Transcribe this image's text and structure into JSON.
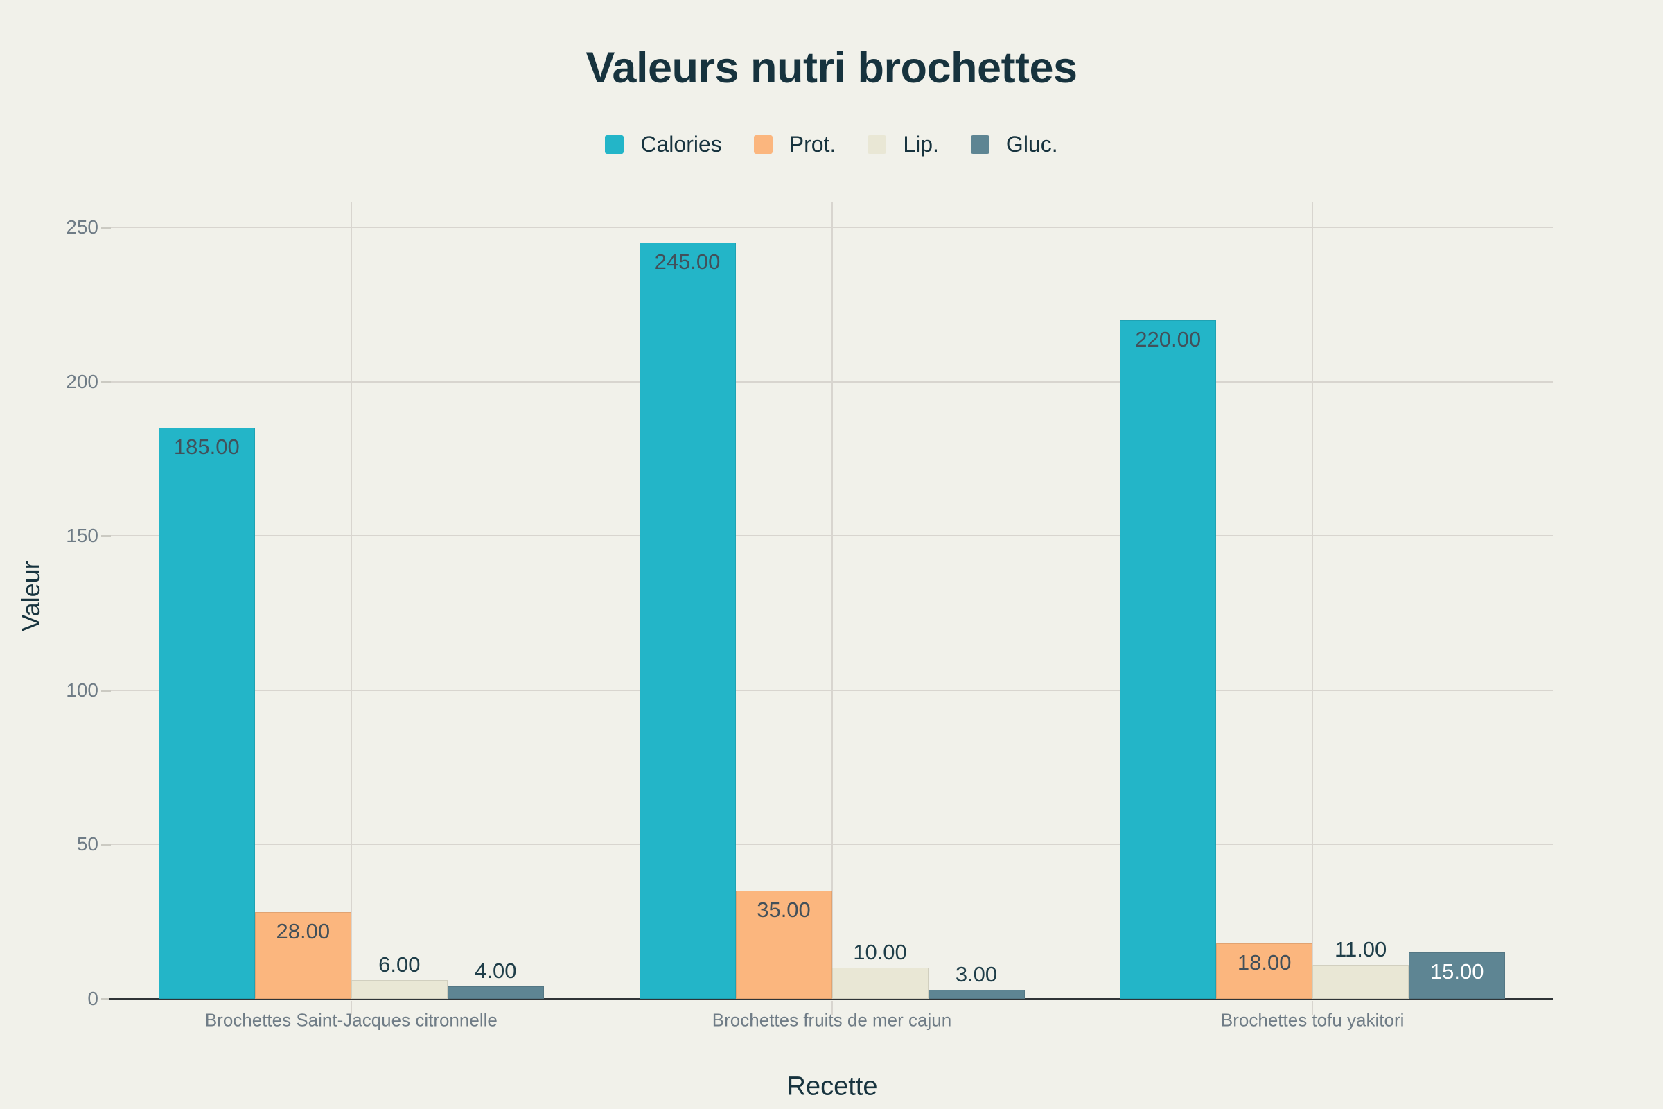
{
  "chart_data": {
    "type": "bar",
    "title": "Valeurs nutri brochettes",
    "xlabel": "Recette",
    "ylabel": "Valeur",
    "categories": [
      "Brochettes Saint-Jacques citronnelle",
      "Brochettes fruits de mer cajun",
      "Brochettes tofu yakitori"
    ],
    "series": [
      {
        "name": "Calories",
        "color": "#23b5c8",
        "values": [
          185,
          245,
          220
        ],
        "labels": [
          "185.00",
          "245.00",
          "220.00"
        ],
        "label_styles": [
          "inside-dark",
          "inside-dark",
          "inside-dark"
        ]
      },
      {
        "name": "Prot.",
        "color": "#fbb67e",
        "values": [
          28,
          35,
          18
        ],
        "labels": [
          "28.00",
          "35.00",
          "18.00"
        ],
        "label_styles": [
          "inside-dark",
          "inside-dark",
          "inside-dark"
        ]
      },
      {
        "name": "Lip.",
        "color": "#e9e7d5",
        "values": [
          6,
          10,
          11
        ],
        "labels": [
          "6.00",
          "10.00",
          "11.00"
        ],
        "label_styles": [
          "outside",
          "outside",
          "outside"
        ]
      },
      {
        "name": "Gluc.",
        "color": "#5e8593",
        "values": [
          4,
          3,
          15
        ],
        "labels": [
          "4.00",
          "3.00",
          "15.00"
        ],
        "label_styles": [
          "outside",
          "outside",
          "inside-white"
        ]
      }
    ],
    "yticks": [
      0,
      50,
      100,
      150,
      200,
      250
    ],
    "ylim": [
      0,
      250
    ],
    "grid": true,
    "legend_position": "top"
  },
  "colors": {
    "background": "#f1f1ea",
    "grid": "#d8d5cf",
    "axis_line": "#2f3437",
    "tick_label": "#6f7c86",
    "heading_text": "#17333e",
    "value_label_inside": "#42505a",
    "value_label_outside": "#1f3e49",
    "value_label_light": "#ffffff",
    "tick_dash": "#cbcac2"
  }
}
